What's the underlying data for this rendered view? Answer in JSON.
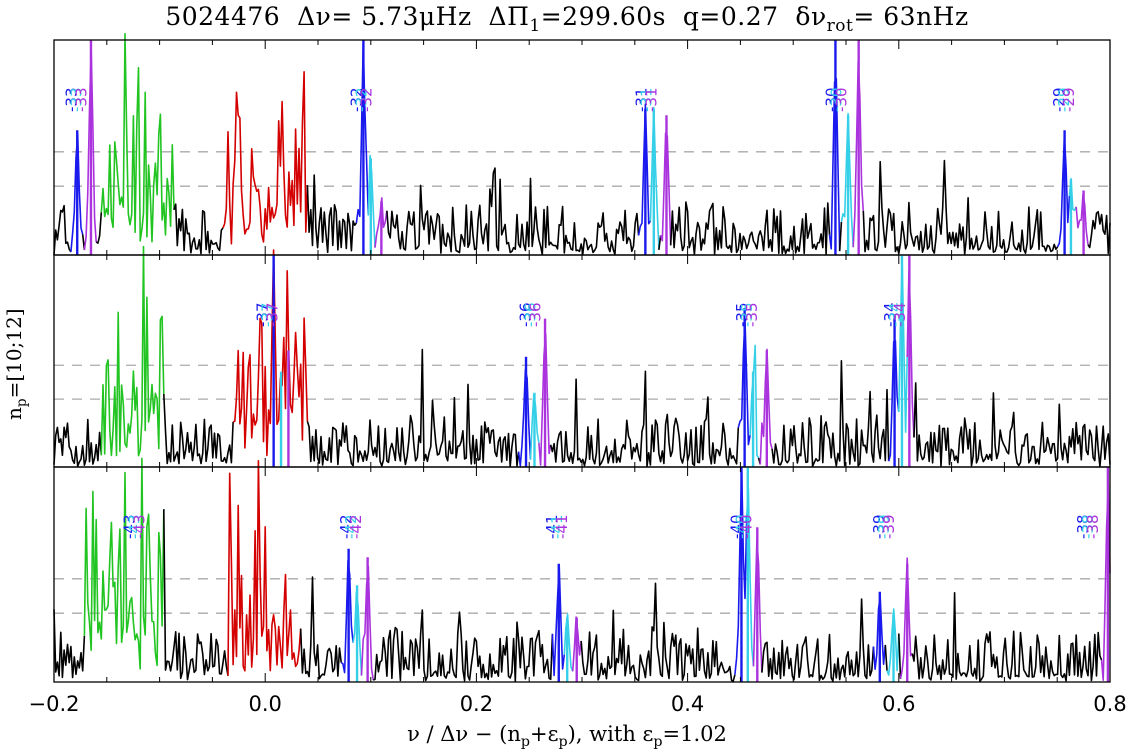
{
  "chart_data": {
    "type": "line",
    "title_parts": {
      "star": "5024476",
      "dnu_label": "Δν=",
      "dnu_value": " 5.73μHz",
      "dpi_label": "ΔΠ",
      "dpi_sub": "1",
      "dpi_value": "=299.60s",
      "q": "q=0.27",
      "rot_label": "δν",
      "rot_sub": "rot",
      "rot_value": "=  63nHz"
    },
    "ylabel": {
      "main": "n",
      "sub": "p",
      "rest": "=[10;12]"
    },
    "xlabel": {
      "text": "ν / Δν − (n",
      "sub1": "p",
      "mid": "+ε",
      "sub2": "p",
      "rest": "),   with ε",
      "sub3": "p",
      "end": "=1.02"
    },
    "xlim": [
      -0.2,
      0.8
    ],
    "xticks": [
      -0.2,
      0.0,
      0.2,
      0.4,
      0.6,
      0.8
    ],
    "xtick_labels": [
      "−0.2",
      "0.0",
      "0.2",
      "0.4",
      "0.6",
      "0.8"
    ],
    "grid": false,
    "dashed_levels": [
      0.48,
      0.32
    ],
    "colors": {
      "spectrum": "#000000",
      "l0": "#d40000",
      "l2": "#22c422",
      "m_minus": "#1a1aee",
      "m_zero": "#35d0e8",
      "m_plus": "#aa33dd",
      "dash": "#aaaaaa"
    },
    "panels": [
      {
        "l0_range": [
          -0.04,
          0.04
        ],
        "l2_range": [
          -0.155,
          -0.085
        ],
        "labels": [
          {
            "x": -0.175,
            "text": "-33"
          },
          {
            "x": 0.095,
            "text": "-32"
          },
          {
            "x": 0.365,
            "text": "-31"
          },
          {
            "x": 0.545,
            "text": "-30"
          },
          {
            "x": 0.76,
            "text": "-29"
          }
        ],
        "peaks": [
          {
            "x": -0.178,
            "h": 0.58,
            "c": "m_minus"
          },
          {
            "x": -0.165,
            "h": 1.0,
            "c": "m_plus"
          },
          {
            "x": 0.093,
            "h": 1.0,
            "c": "m_minus"
          },
          {
            "x": 0.1,
            "h": 0.45,
            "c": "m_zero"
          },
          {
            "x": 0.11,
            "h": 0.25,
            "c": "m_plus"
          },
          {
            "x": 0.36,
            "h": 0.68,
            "c": "m_minus"
          },
          {
            "x": 0.368,
            "h": 0.68,
            "c": "m_zero"
          },
          {
            "x": 0.38,
            "h": 0.65,
            "c": "m_plus"
          },
          {
            "x": 0.54,
            "h": 1.0,
            "c": "m_minus"
          },
          {
            "x": 0.552,
            "h": 0.65,
            "c": "m_zero"
          },
          {
            "x": 0.562,
            "h": 1.0,
            "c": "m_plus"
          },
          {
            "x": 0.757,
            "h": 0.58,
            "c": "m_minus"
          },
          {
            "x": 0.763,
            "h": 0.35,
            "c": "m_zero"
          },
          {
            "x": 0.775,
            "h": 0.3,
            "c": "m_plus"
          }
        ]
      },
      {
        "l0_range": [
          -0.03,
          0.04
        ],
        "l2_range": [
          -0.155,
          -0.095
        ],
        "labels": [
          {
            "x": 0.006,
            "text": "-37"
          },
          {
            "x": 0.255,
            "text": "-36"
          },
          {
            "x": 0.46,
            "text": "-35"
          },
          {
            "x": 0.6,
            "text": "-34"
          }
        ],
        "peaks": [
          {
            "x": 0.008,
            "h": 1.0,
            "c": "m_minus"
          },
          {
            "x": 0.015,
            "h": 0.45,
            "c": "m_zero"
          },
          {
            "x": 0.022,
            "h": 0.55,
            "c": "m_plus"
          },
          {
            "x": 0.247,
            "h": 0.52,
            "c": "m_minus"
          },
          {
            "x": 0.255,
            "h": 0.35,
            "c": "m_zero"
          },
          {
            "x": 0.265,
            "h": 0.7,
            "c": "m_plus"
          },
          {
            "x": 0.454,
            "h": 0.75,
            "c": "m_minus"
          },
          {
            "x": 0.462,
            "h": 0.45,
            "c": "m_zero"
          },
          {
            "x": 0.475,
            "h": 0.55,
            "c": "m_plus"
          },
          {
            "x": 0.596,
            "h": 0.72,
            "c": "m_minus"
          },
          {
            "x": 0.603,
            "h": 1.0,
            "c": "m_zero"
          },
          {
            "x": 0.61,
            "h": 1.0,
            "c": "m_plus"
          }
        ]
      },
      {
        "l0_range": [
          -0.035,
          0.035
        ],
        "l2_range": [
          -0.17,
          -0.095
        ],
        "labels": [
          {
            "x": -0.12,
            "text": "-43"
          },
          {
            "x": 0.085,
            "text": "-42"
          },
          {
            "x": 0.28,
            "text": "-41"
          },
          {
            "x": 0.455,
            "text": "-40"
          },
          {
            "x": 0.59,
            "text": "-39"
          },
          {
            "x": 0.783,
            "text": "-38"
          }
        ],
        "peaks": [
          {
            "x": 0.079,
            "h": 0.62,
            "c": "m_minus"
          },
          {
            "x": 0.087,
            "h": 0.45,
            "c": "m_zero"
          },
          {
            "x": 0.097,
            "h": 0.58,
            "c": "m_plus"
          },
          {
            "x": 0.278,
            "h": 0.55,
            "c": "m_minus"
          },
          {
            "x": 0.286,
            "h": 0.3,
            "c": "m_zero"
          },
          {
            "x": 0.295,
            "h": 0.3,
            "c": "m_plus"
          },
          {
            "x": 0.451,
            "h": 1.0,
            "c": "m_minus"
          },
          {
            "x": 0.457,
            "h": 1.0,
            "c": "m_zero"
          },
          {
            "x": 0.466,
            "h": 0.72,
            "c": "m_plus"
          },
          {
            "x": 0.582,
            "h": 0.42,
            "c": "m_minus"
          },
          {
            "x": 0.595,
            "h": 0.32,
            "c": "m_zero"
          },
          {
            "x": 0.608,
            "h": 0.55,
            "c": "m_plus"
          },
          {
            "x": 0.798,
            "h": 1.0,
            "c": "m_plus"
          }
        ]
      }
    ]
  }
}
